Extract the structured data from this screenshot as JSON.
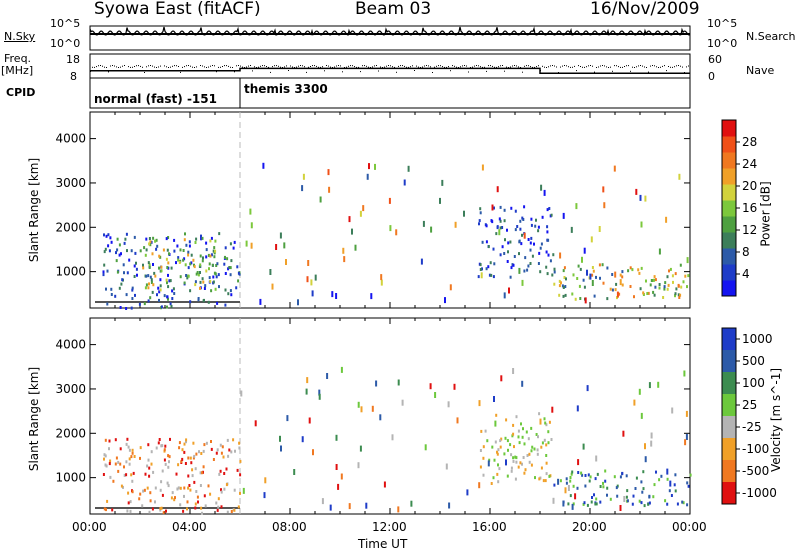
{
  "header": {
    "station": "Syowa East (fitACF)",
    "beam": "Beam 03",
    "date": "16/Nov/2009"
  },
  "status_panels": {
    "nsky_label": "N.Sky",
    "nsky_top": "10^5",
    "nsky_bottom": "10^0",
    "nsearch_label": "N.Search",
    "nsearch_top": "10^5",
    "nsearch_bottom": "10^0",
    "freq_label": "Freq.",
    "freq_unit": "[MHz]",
    "freq_top": "18",
    "freq_bottom": "8",
    "nave_label": "Nave",
    "nave_top": "60",
    "nave_bottom": "0",
    "cpid_label": "CPID",
    "cpid_segments": [
      {
        "label": "normal (fast) -151",
        "start_hour": 0,
        "end_hour": 6
      },
      {
        "label": "themis 3300",
        "start_hour": 6,
        "end_hour": 24
      }
    ],
    "freq_steps": [
      {
        "start_hour": 0,
        "end_hour": 6,
        "freq_mhz": 11
      },
      {
        "start_hour": 6,
        "end_hour": 18,
        "freq_mhz": 12
      },
      {
        "start_hour": 18,
        "end_hour": 24,
        "freq_mhz": 10
      }
    ]
  },
  "x_axis": {
    "label": "Time UT",
    "ticks": [
      "00:00",
      "04:00",
      "08:00",
      "12:00",
      "16:00",
      "20:00",
      "00:00"
    ]
  },
  "chart_data": [
    {
      "type": "heatmap",
      "ylabel": "Slant Range [km]",
      "xlabel": "Time UT",
      "xlim": [
        0,
        24
      ],
      "ylim": [
        180,
        4600
      ],
      "y_ticks": [
        1000,
        2000,
        3000,
        4000
      ],
      "colorbar": {
        "label": "Power [dB]",
        "ticks": [
          "4",
          "8",
          "12",
          "16",
          "20",
          "24",
          "28"
        ],
        "colors": [
          "#1414f0",
          "#1e3cc8",
          "#2c5aa8",
          "#3c7e5a",
          "#4ea040",
          "#7cc83c",
          "#d2d23c",
          "#f0a028",
          "#f07820",
          "#f05018",
          "#e01010"
        ]
      },
      "regions": [
        {
          "t0": 0.5,
          "t1": 6.0,
          "r0": 200,
          "r1": 1900,
          "level": "low-mid"
        },
        {
          "t0": 2.0,
          "t1": 5.0,
          "r0": 600,
          "r1": 1800,
          "level": "mid-high"
        },
        {
          "t0": 15.5,
          "t1": 18.5,
          "r0": 900,
          "r1": 2500,
          "level": "low"
        },
        {
          "t0": 18.5,
          "t1": 24.0,
          "r0": 400,
          "r1": 1200,
          "level": "mid"
        }
      ]
    },
    {
      "type": "heatmap",
      "ylabel": "Slant Range [km]",
      "xlabel": "Time UT",
      "xlim": [
        0,
        24
      ],
      "ylim": [
        180,
        4600
      ],
      "y_ticks": [
        1000,
        2000,
        3000,
        4000
      ],
      "colorbar": {
        "label": "Velocity [m s^-1]",
        "ticks": [
          "1000",
          "500",
          "100",
          "25",
          "-25",
          "-100",
          "-500",
          "-1000"
        ],
        "colors": [
          "#1e3cc8",
          "#2c5aa8",
          "#3c8c50",
          "#6cc83c",
          "#b4b4b4",
          "#f0a028",
          "#f07820",
          "#e01010"
        ]
      },
      "regions": [
        {
          "t0": 0.5,
          "t1": 6.0,
          "r0": 200,
          "r1": 1900,
          "level": "negative"
        },
        {
          "t0": 15.5,
          "t1": 18.5,
          "r0": 900,
          "r1": 2500,
          "level": "negative-small"
        },
        {
          "t0": 18.5,
          "t1": 24.0,
          "r0": 400,
          "r1": 1200,
          "level": "positive"
        }
      ]
    }
  ]
}
